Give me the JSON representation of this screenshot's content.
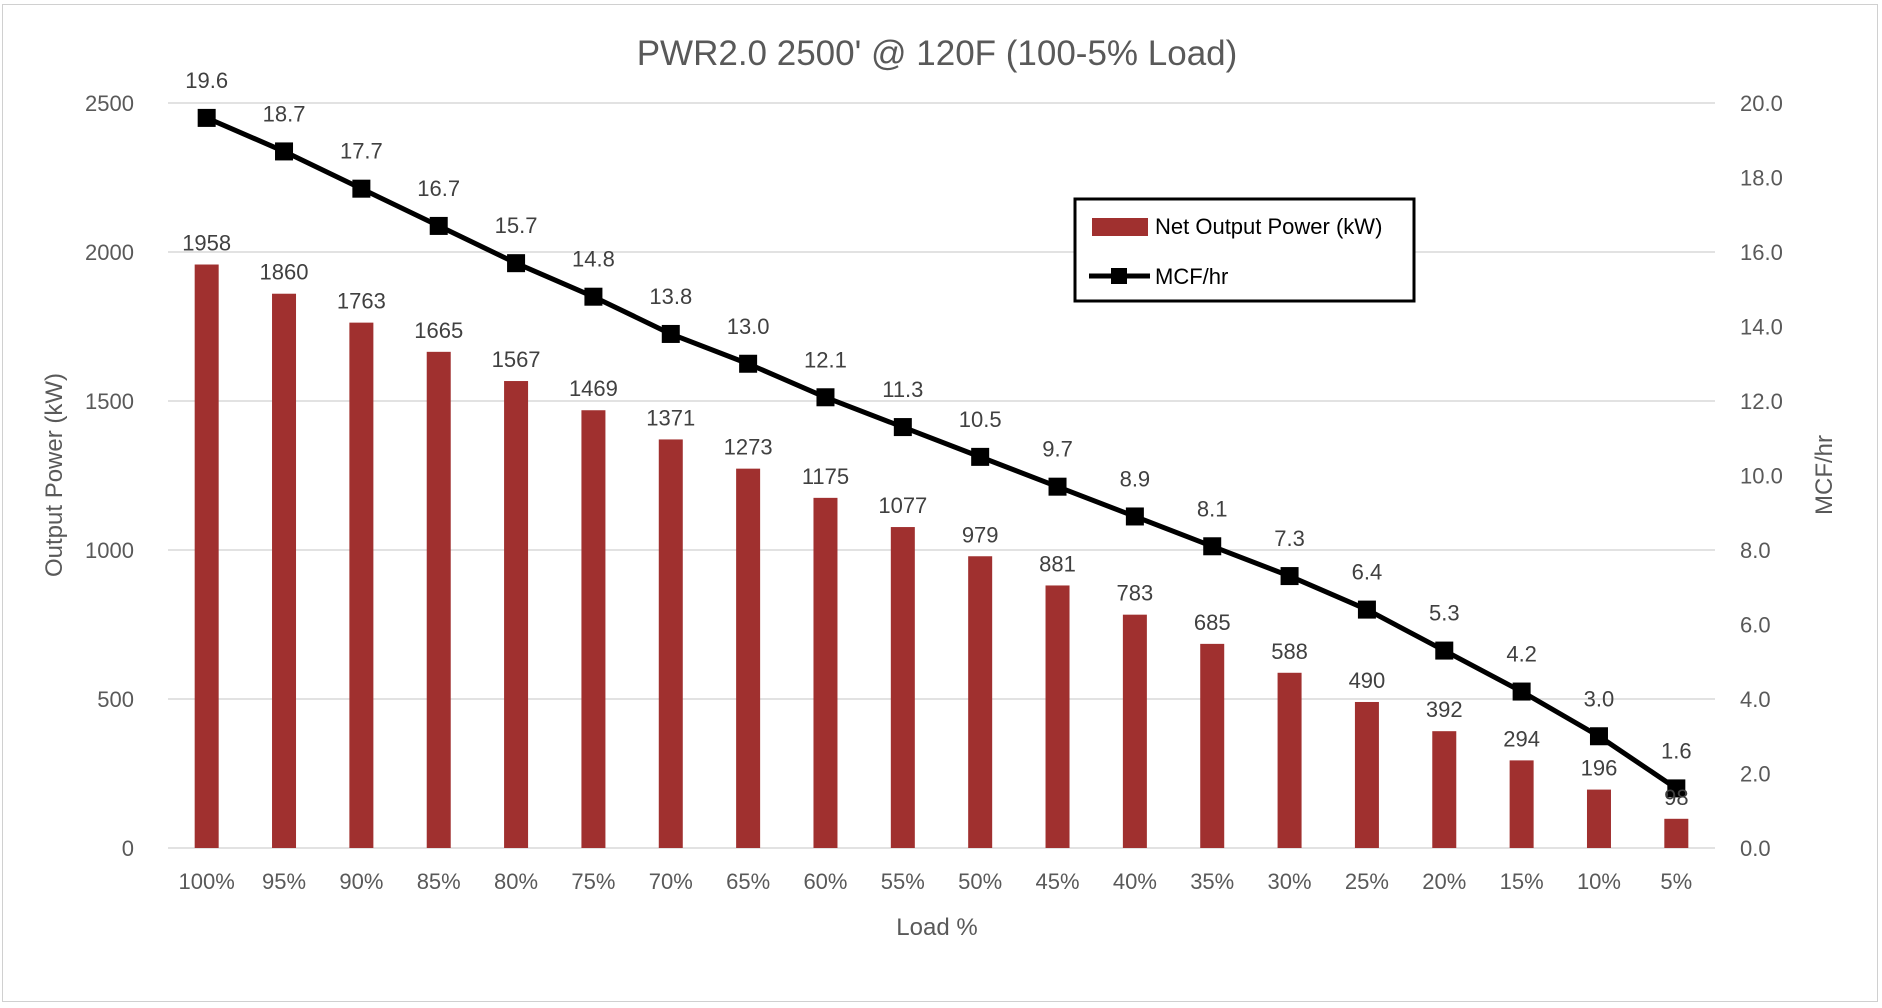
{
  "chart_data": {
    "type": "bar",
    "title": "PWR2.0 2500' @ 120F (100-5% Load)",
    "xlabel": "Load %",
    "ylabel": "Output Power (kW)",
    "y2label": "MCF/hr",
    "categories": [
      "100%",
      "95%",
      "90%",
      "85%",
      "80%",
      "75%",
      "70%",
      "65%",
      "60%",
      "55%",
      "50%",
      "45%",
      "40%",
      "35%",
      "30%",
      "25%",
      "20%",
      "15%",
      "10%",
      "5%"
    ],
    "series": [
      {
        "name": "Net Output Power (kW)",
        "type": "bar",
        "axis": "left",
        "color": "#a0302f",
        "values": [
          1958,
          1860,
          1763,
          1665,
          1567,
          1469,
          1371,
          1273,
          1175,
          1077,
          979,
          881,
          783,
          685,
          588,
          490,
          392,
          294,
          196,
          98
        ],
        "labels": [
          "1958",
          "1860",
          "1763",
          "1665",
          "1567",
          "1469",
          "1371",
          "1273",
          "1175",
          "1077",
          "979",
          "881",
          "783",
          "685",
          "588",
          "490",
          "392",
          "294",
          "196",
          "98"
        ]
      },
      {
        "name": "MCF/hr",
        "type": "line",
        "axis": "right",
        "color": "#000000",
        "values": [
          19.6,
          18.7,
          17.7,
          16.7,
          15.7,
          14.8,
          13.8,
          13.0,
          12.1,
          11.3,
          10.5,
          9.7,
          8.9,
          8.1,
          7.3,
          6.4,
          5.3,
          4.2,
          3.0,
          1.6
        ],
        "labels": [
          "19.6",
          "18.7",
          "17.7",
          "16.7",
          "15.7",
          "14.8",
          "13.8",
          "13.0",
          "12.1",
          "11.3",
          "10.5",
          "9.7",
          "8.9",
          "8.1",
          "7.3",
          "6.4",
          "5.3",
          "4.2",
          "3.0",
          "1.6"
        ]
      }
    ],
    "ylim": [
      0,
      2500
    ],
    "y2lim": [
      0,
      20
    ],
    "yticks": [
      "0",
      "500",
      "1000",
      "1500",
      "2000",
      "2500"
    ],
    "y2ticks": [
      "0.0",
      "2.0",
      "4.0",
      "6.0",
      "8.0",
      "10.0",
      "12.0",
      "14.0",
      "16.0",
      "18.0",
      "20.0"
    ],
    "grid": true,
    "legend_position": "top-right"
  }
}
